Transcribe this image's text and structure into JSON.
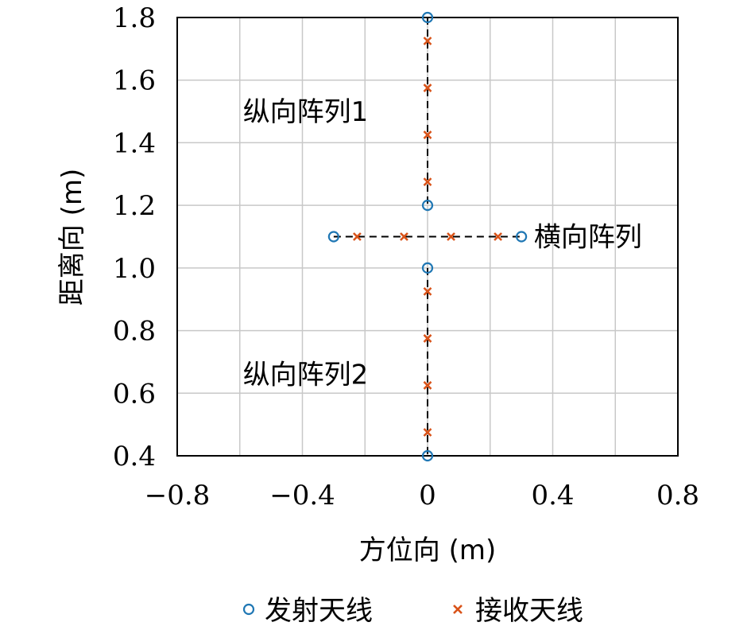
{
  "chart_data": {
    "type": "scatter",
    "title": "",
    "xlabel": "方位向 (m)",
    "ylabel": "距离向 (m)",
    "xlim": [
      -0.8,
      0.8
    ],
    "ylim": [
      0.4,
      1.8
    ],
    "x_ticks": [
      -0.8,
      -0.4,
      0,
      0.4,
      0.8
    ],
    "x_tick_labels": [
      "−0.8",
      "−0.4",
      "0",
      "0.4",
      "0.8"
    ],
    "y_ticks": [
      0.4,
      0.6,
      0.8,
      1.0,
      1.2,
      1.4,
      1.6,
      1.8
    ],
    "y_tick_labels": [
      "0.4",
      "0.6",
      "0.8",
      "1.0",
      "1.2",
      "1.4",
      "1.6",
      "1.8"
    ],
    "grid": true,
    "legend_position": "bottom",
    "series": [
      {
        "name": "发射天线",
        "marker": "circle",
        "color": "#1f77b4",
        "x": [
          0,
          0,
          0,
          0,
          -0.3,
          0.3
        ],
        "y": [
          1.8,
          1.2,
          1.0,
          0.4,
          1.1,
          1.1
        ]
      },
      {
        "name": "接收天线",
        "marker": "x",
        "color": "#d95319",
        "x": [
          0,
          0,
          0,
          0,
          0,
          0,
          0,
          0,
          -0.225,
          -0.075,
          0.075,
          0.225
        ],
        "y": [
          1.725,
          1.575,
          1.425,
          1.275,
          0.925,
          0.775,
          0.625,
          0.475,
          1.1,
          1.1,
          1.1,
          1.1
        ]
      }
    ],
    "connectors": [
      {
        "x": [
          0,
          0
        ],
        "y": [
          1.8,
          1.2
        ]
      },
      {
        "x": [
          0,
          0
        ],
        "y": [
          1.0,
          0.4
        ]
      },
      {
        "x": [
          -0.3,
          0.3
        ],
        "y": [
          1.1,
          1.1
        ]
      }
    ],
    "annotations": [
      {
        "text": "纵向阵列1",
        "x": -0.59,
        "y": 1.5
      },
      {
        "text": "横向阵列",
        "x": 0.34,
        "y": 1.1
      },
      {
        "text": "纵向阵列2",
        "x": -0.59,
        "y": 0.66
      }
    ]
  }
}
